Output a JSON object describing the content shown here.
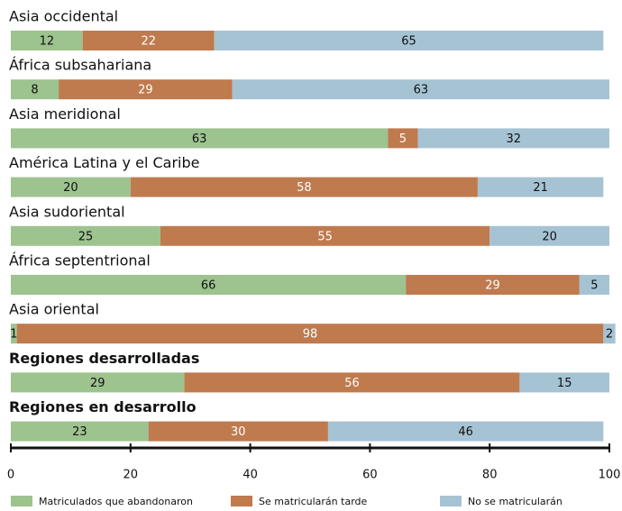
{
  "chart_data": {
    "type": "stacked_bar_horizontal",
    "categories": [
      "Asia occidental",
      "África subsahariana",
      "Asia meridional",
      "América Latina y el Caribe",
      "Asia sudoriental",
      "África septentrional",
      "Asia oriental",
      "Regiones desarrolladas",
      "Regiones en desarrollo"
    ],
    "bold": [
      false,
      false,
      false,
      false,
      false,
      false,
      false,
      true,
      true
    ],
    "series": [
      {
        "name": "Matriculados que abandonaron",
        "color": "#9dc38f",
        "label_color": "#111111",
        "values": [
          12,
          8,
          63,
          20,
          25,
          66,
          1,
          29,
          23
        ]
      },
      {
        "name": "Se matricularán tarde",
        "color": "#bf7a4e",
        "label_color": "#ffffff",
        "values": [
          22,
          29,
          5,
          58,
          55,
          29,
          98,
          56,
          30
        ]
      },
      {
        "name": "No se matricularán",
        "color": "#a6c3d4",
        "label_color": "#111111",
        "values": [
          65,
          63,
          32,
          21,
          20,
          5,
          2,
          15,
          46
        ]
      }
    ],
    "xlim": [
      0,
      100
    ],
    "xticks": [
      0,
      20,
      40,
      60,
      80,
      100
    ]
  }
}
